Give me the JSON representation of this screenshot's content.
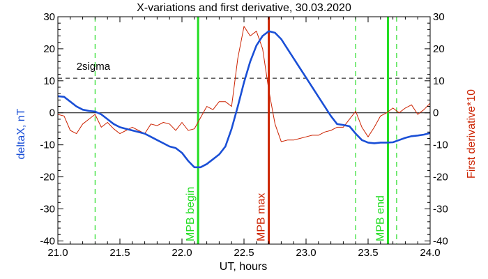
{
  "chart_data": {
    "type": "line",
    "title": "X-variations and first derivative, 30.03.2020",
    "xlabel": "UT, hours",
    "ylabel_left": "deltaX, nT",
    "ylabel_right": "First derivative*10",
    "xlim": [
      21.0,
      24.0
    ],
    "ylim": [
      -41,
      30
    ],
    "x_ticks": [
      "21.0",
      "21.5",
      "22.0",
      "22.5",
      "23.0",
      "23.5",
      "24.0"
    ],
    "y_ticks": [
      "30",
      "20",
      "10",
      "0",
      "-10",
      "-20",
      "-30",
      "-40"
    ],
    "grid": false,
    "threshold": {
      "label": "2sigma",
      "y": 10.8
    },
    "series": [
      {
        "name": "deltaX, nT",
        "color": "#1a4fd6",
        "x": [
          21.0,
          21.05,
          21.1,
          21.15,
          21.2,
          21.25,
          21.3,
          21.35,
          21.4,
          21.45,
          21.5,
          21.55,
          21.6,
          21.65,
          21.7,
          21.75,
          21.8,
          21.85,
          21.9,
          21.95,
          22.0,
          22.05,
          22.1,
          22.15,
          22.2,
          22.25,
          22.3,
          22.35,
          22.4,
          22.45,
          22.5,
          22.55,
          22.6,
          22.65,
          22.7,
          22.75,
          22.8,
          22.85,
          22.9,
          22.95,
          23.0,
          23.05,
          23.1,
          23.15,
          23.2,
          23.25,
          23.3,
          23.35,
          23.4,
          23.45,
          23.5,
          23.55,
          23.6,
          23.65,
          23.7,
          23.75,
          23.8,
          23.85,
          23.9,
          23.95,
          24.0
        ],
        "values": [
          5.2,
          5.0,
          3.5,
          2.0,
          1.0,
          0.6,
          0.4,
          -0.5,
          -2.0,
          -3.5,
          -4.5,
          -5.0,
          -5.5,
          -6.0,
          -6.5,
          -7.5,
          -8.5,
          -9.5,
          -10.5,
          -11.0,
          -12.5,
          -15.0,
          -17.0,
          -17.0,
          -16.0,
          -14.5,
          -13.0,
          -10.5,
          -5.0,
          2.0,
          9.5,
          16.0,
          21.0,
          24.0,
          25.5,
          25.0,
          23.0,
          20.0,
          17.0,
          14.0,
          11.0,
          8.0,
          5.0,
          2.0,
          -1.0,
          -3.5,
          -3.8,
          -4.2,
          -6.5,
          -8.5,
          -9.3,
          -9.5,
          -9.3,
          -9.3,
          -9.2,
          -8.5,
          -7.8,
          -7.3,
          -7.1,
          -6.8,
          -6.3
        ]
      },
      {
        "name": "First derivative*10",
        "color": "#cc2200",
        "x": [
          21.0,
          21.05,
          21.1,
          21.15,
          21.2,
          21.25,
          21.3,
          21.35,
          21.4,
          21.45,
          21.5,
          21.55,
          21.6,
          21.65,
          21.7,
          21.75,
          21.8,
          21.85,
          21.9,
          21.95,
          22.0,
          22.05,
          22.1,
          22.15,
          22.2,
          22.25,
          22.3,
          22.35,
          22.4,
          22.45,
          22.5,
          22.55,
          22.6,
          22.65,
          22.7,
          22.75,
          22.8,
          22.85,
          22.9,
          22.95,
          23.0,
          23.05,
          23.1,
          23.15,
          23.2,
          23.25,
          23.3,
          23.35,
          23.4,
          23.45,
          23.5,
          23.55,
          23.6,
          23.65,
          23.7,
          23.75,
          23.8,
          23.85,
          23.9,
          23.95,
          24.0
        ],
        "values": [
          -0.5,
          -1.0,
          -5.5,
          -6.5,
          -3.5,
          -2.0,
          -0.5,
          -4.5,
          -3.0,
          -5.0,
          -6.5,
          -5.5,
          -4.5,
          -5.5,
          -6.5,
          -3.5,
          -4.0,
          -3.0,
          -3.5,
          -5.5,
          -3.0,
          -5.5,
          -5.0,
          -1.5,
          2.0,
          1.0,
          3.5,
          3.5,
          2.0,
          17.0,
          27.0,
          24.0,
          25.5,
          20.0,
          7.0,
          -3.5,
          -9.0,
          -8.5,
          -8.5,
          -8.0,
          -7.5,
          -7.0,
          -7.0,
          -6.0,
          -5.5,
          -4.5,
          -4.5,
          -2.0,
          0.5,
          -4.5,
          -7.5,
          -4.5,
          -1.0,
          0.0,
          1.5,
          0.0,
          1.5,
          2.5,
          -0.5,
          1.0,
          3.0
        ]
      }
    ],
    "vertical_markers": [
      {
        "x": 21.3,
        "style": "dashed",
        "color": "#22dd22",
        "label": ""
      },
      {
        "x": 22.13,
        "style": "solid",
        "color": "#22dd22",
        "label": "MPB begin"
      },
      {
        "x": 22.7,
        "style": "solid",
        "color": "#cc2200",
        "label": "MPB max"
      },
      {
        "x": 23.4,
        "style": "dashed",
        "color": "#22dd22",
        "label": ""
      },
      {
        "x": 23.66,
        "style": "solid",
        "color": "#22dd22",
        "label": "MPB end"
      },
      {
        "x": 23.73,
        "style": "dashed",
        "color": "#22dd22",
        "label": ""
      }
    ]
  }
}
